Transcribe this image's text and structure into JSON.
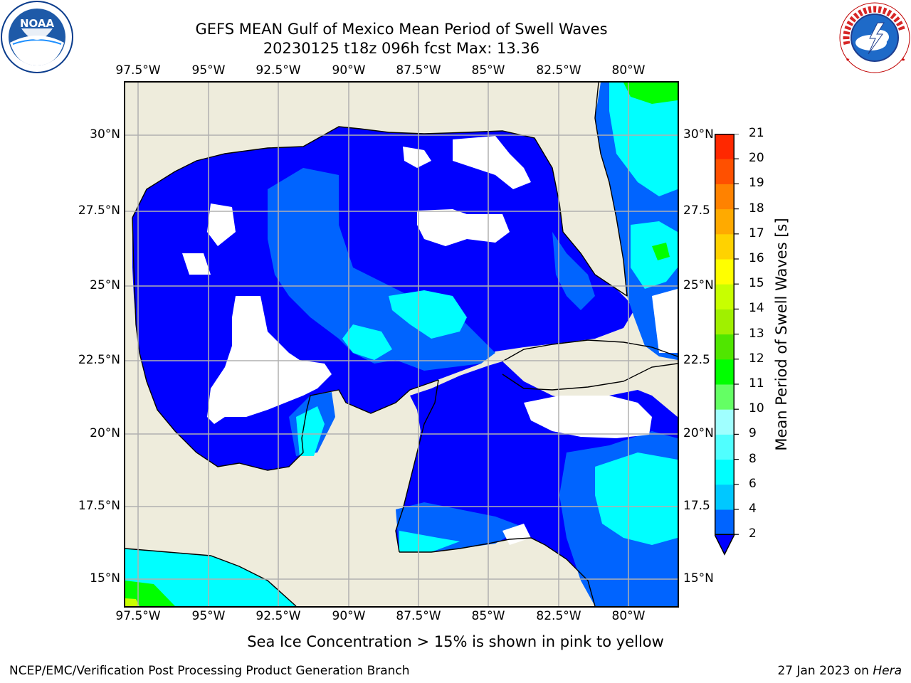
{
  "header": {
    "title": "GEFS MEAN Gulf of Mexico Mean Period of Swell Waves",
    "subtitle": "20230125 t18z 096h fcst   Max: 13.36"
  },
  "logos": {
    "noaa": {
      "name": "noaa-logo",
      "text": "NOAA",
      "ring_text": "NATIONAL OCEANIC AND ATMOSPHERIC ADMINISTRATION · U.S. DEPARTMENT OF COMMERCE"
    },
    "nws": {
      "name": "nws-logo",
      "ring_text": "NATIONAL WEATHER SERVICE"
    }
  },
  "map": {
    "lon_labels": [
      "97.5°W",
      "95°W",
      "92.5°W",
      "90°W",
      "87.5°W",
      "85°W",
      "82.5°W",
      "80°W"
    ],
    "lat_labels_left": [
      "30°N",
      "27.5°N",
      "25°N",
      "22.5°N",
      "20°N",
      "17.5°N",
      "15°N"
    ],
    "lat_labels_right": [
      "30°N",
      "27.5",
      "25°N",
      "22.5",
      "20°N",
      "17.5",
      "15°N"
    ],
    "lon_range": [
      -98,
      -78.1
    ],
    "lat_range": [
      14,
      31.8
    ],
    "land_color": "#eeecdc",
    "grid_color": "#b0b0b0"
  },
  "colorbar": {
    "label": "Mean Period of Swell Waves [s]",
    "ticks": [
      "2",
      "4",
      "6",
      "8",
      "9",
      "10",
      "11",
      "12",
      "13",
      "14",
      "15",
      "16",
      "17",
      "18",
      "19",
      "20",
      "21"
    ],
    "colors": [
      "#0000ff",
      "#0064ff",
      "#00c8ff",
      "#00ffff",
      "#50ffff",
      "#a0ffff",
      "#64ff64",
      "#00ff00",
      "#50e600",
      "#a0f000",
      "#c8ff00",
      "#ffff00",
      "#ffd200",
      "#ffaa00",
      "#ff8200",
      "#ff5000",
      "#ff2800",
      "#ff0000"
    ]
  },
  "footnote": "Sea Ice Concentration > 15% is shown in pink to yellow",
  "credits": {
    "left": "NCEP/EMC/Verification Post Processing Product Generation Branch",
    "right_prefix": "27 Jan 2023 on ",
    "right_host": "Hera"
  }
}
